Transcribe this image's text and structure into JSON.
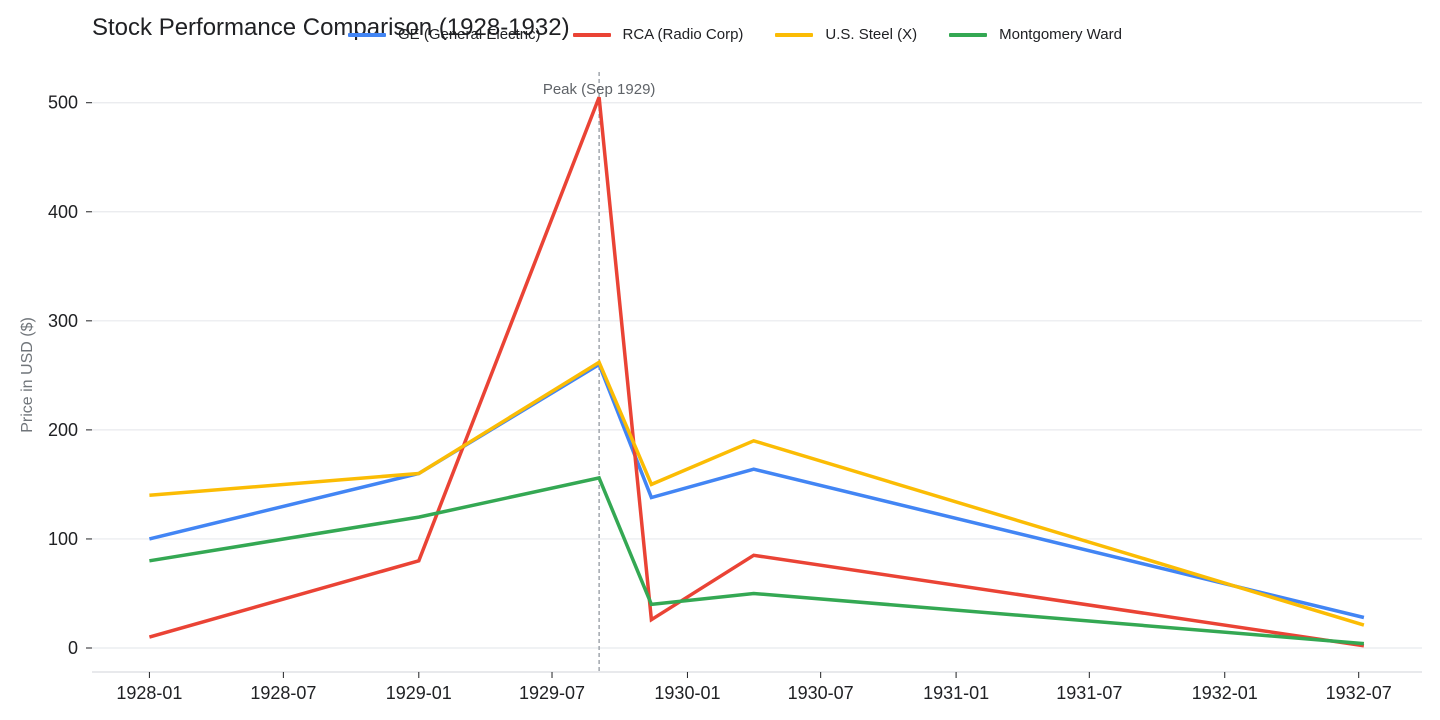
{
  "chart_data": {
    "type": "line",
    "title": "Stock Performance Comparison (1928-1932)",
    "xlabel": "",
    "ylabel": "Price in USD ($)",
    "x": [
      "1928-01-01",
      "1929-01-01",
      "1929-09-03",
      "1929-11-13",
      "1930-04-01",
      "1932-07-08"
    ],
    "x_ticks": [
      "1928-01",
      "1928-07",
      "1929-01",
      "1929-07",
      "1930-01",
      "1930-07",
      "1931-01",
      "1931-07",
      "1932-01",
      "1932-07"
    ],
    "xlim": [
      "1927-10-15",
      "1932-09-25"
    ],
    "y_ticks": [
      0,
      100,
      200,
      300,
      400,
      500
    ],
    "ylim": [
      -22,
      530
    ],
    "grid": true,
    "legend_position": "top",
    "series": [
      {
        "name": "GE (General Electric)",
        "color": "#4285f4",
        "values": [
          100,
          160,
          260,
          138,
          164,
          28
        ]
      },
      {
        "name": "RCA (Radio Corp)",
        "color": "#ea4335",
        "values": [
          10,
          80,
          505,
          26,
          85,
          2
        ]
      },
      {
        "name": "U.S. Steel (X)",
        "color": "#fbbc04",
        "values": [
          140,
          160,
          262,
          150,
          190,
          21
        ]
      },
      {
        "name": "Montgomery Ward",
        "color": "#34a853",
        "values": [
          80,
          120,
          156,
          40,
          50,
          4
        ]
      }
    ],
    "annotations": [
      {
        "text": "Peak (Sep 1929)",
        "x": "1929-09-03",
        "style": "dashed-vertical-line"
      }
    ]
  }
}
